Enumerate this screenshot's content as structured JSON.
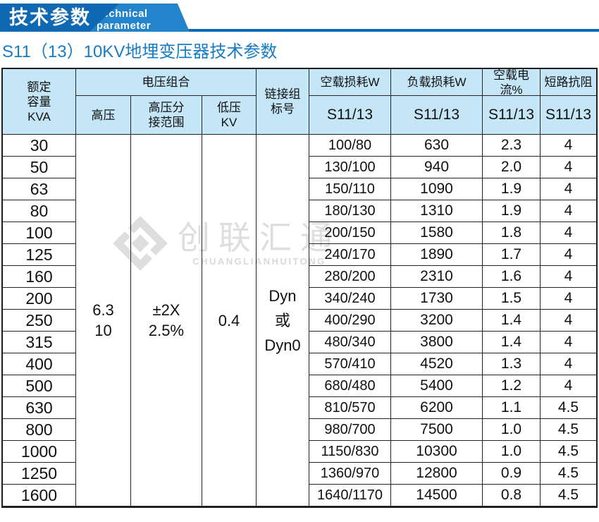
{
  "banner": {
    "title": "技术参数",
    "subtitle_en": "Technical parameter"
  },
  "page": {
    "subtitle": "S11（13）10KV地埋变压器技术参数"
  },
  "watermark": {
    "cn": "创联汇通",
    "en": "CHUANGLIANHUITONG",
    "logo_icon": "diamond-pinwheel-logo-icon"
  },
  "colors": {
    "banner_dark_blue": "#0e69b2",
    "banner_light_blue": "#2484cb",
    "subtitle_blue": "#187cc4",
    "header_cell_blue": "#c4e6f7",
    "grid_border": "#242424",
    "watermark_gray": "#dedede"
  },
  "table": {
    "headers": {
      "capacity": "额定\n容量\nKVA",
      "voltage_group": "电压组合",
      "hv": "高压",
      "hv_tap_range": "高压分\n接范围",
      "lv": "低压\nKV",
      "link_group": "链接组\n标号",
      "no_load_loss": "空载损耗W",
      "load_loss": "负载损耗W",
      "no_load_current": "空载电流%",
      "impedance": "短路抗阻",
      "series_label": "S11/13"
    },
    "merged": {
      "hv_value": "6.3\n10",
      "tap_value": "±2X\n2.5%",
      "lv_value": "0.4",
      "link_value": "Dyn\n或\nDyn0"
    },
    "rows": {
      "capacity": [
        "30",
        "50",
        "63",
        "80",
        "100",
        "125",
        "160",
        "200",
        "250",
        "315",
        "400",
        "500",
        "630",
        "800",
        "1000",
        "1250",
        "1600"
      ],
      "no_load_loss": [
        "100/80",
        "130/100",
        "150/110",
        "180/130",
        "200/150",
        "240/170",
        "280/200",
        "340/240",
        "400/290",
        "480/340",
        "570/410",
        "680/480",
        "810/570",
        "980/700",
        "1150/830",
        "1360/970",
        "1640/1170"
      ],
      "load_loss": [
        "630",
        "940",
        "1090",
        "1310",
        "1580",
        "1890",
        "2310",
        "1730",
        "3200",
        "3800",
        "4520",
        "5400",
        "6200",
        "7500",
        "10300",
        "12800",
        "14500"
      ],
      "no_load_current": [
        "2.3",
        "2.0",
        "1.9",
        "1.9",
        "1.8",
        "1.7",
        "1.6",
        "1.5",
        "1.4",
        "1.4",
        "1.3",
        "1.2",
        "1.1",
        "1.0",
        "1.0",
        "0.9",
        "0.8"
      ],
      "impedance": [
        "4",
        "4",
        "4",
        "4",
        "4",
        "4",
        "4",
        "4",
        "4",
        "4",
        "4",
        "4",
        "4.5",
        "4.5",
        "4.5",
        "4.5",
        "4.5"
      ]
    }
  }
}
